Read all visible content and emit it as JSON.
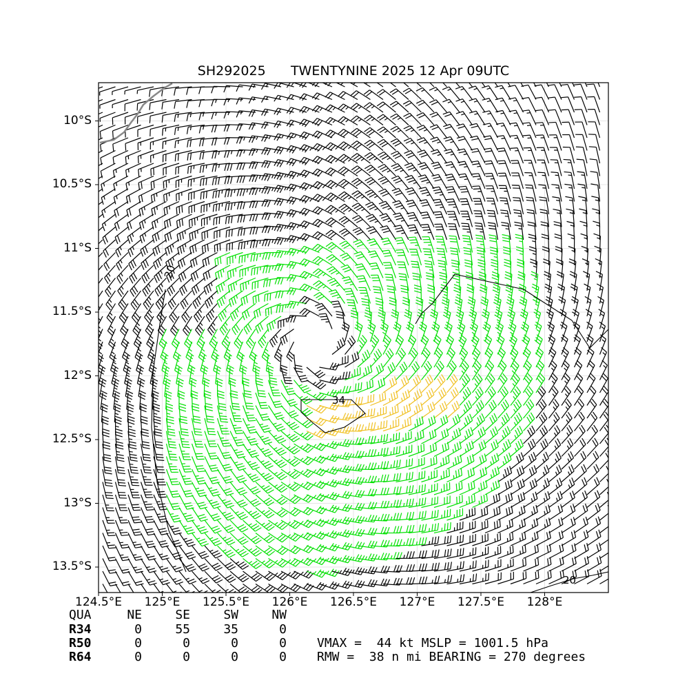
{
  "title": {
    "storm_id": "SH292025",
    "storm_info": "TWENTYNINE 2025 12 Apr 09UTC"
  },
  "map": {
    "lon_range": [
      124.5,
      128.5
    ],
    "lat_range": [
      -9.7,
      -13.7
    ],
    "center": {
      "lon": 126.2,
      "lat": -11.75
    },
    "lat_ticks": [
      {
        "value": -10.0,
        "label": "10°S"
      },
      {
        "value": -10.5,
        "label": "10.5°S"
      },
      {
        "value": -11.0,
        "label": "11°S"
      },
      {
        "value": -11.5,
        "label": "11.5°S"
      },
      {
        "value": -12.0,
        "label": "12°S"
      },
      {
        "value": -12.5,
        "label": "12.5°S"
      },
      {
        "value": -13.0,
        "label": "13°S"
      },
      {
        "value": -13.5,
        "label": "13.5°S"
      }
    ],
    "lon_ticks": [
      {
        "value": 124.5,
        "label": "124.5°E"
      },
      {
        "value": 125.0,
        "label": "125°E"
      },
      {
        "value": 125.5,
        "label": "125.5°E"
      },
      {
        "value": 126.0,
        "label": "126°E"
      },
      {
        "value": 126.5,
        "label": "126.5°E"
      },
      {
        "value": 127.0,
        "label": "127°E"
      },
      {
        "value": 127.5,
        "label": "127.5°E"
      },
      {
        "value": 128.0,
        "label": "128°E"
      }
    ],
    "contour_labels": [
      "20",
      "34",
      "20"
    ],
    "colors": {
      "barb_weak": "#000000",
      "barb_34kt": "#00e000",
      "barb_50kt": "#f0c020",
      "coastline": "#888888",
      "contour": "#000000"
    }
  },
  "wind_radii": {
    "header": [
      "QUA",
      "NE",
      "SE",
      "SW",
      "NW"
    ],
    "rows": [
      {
        "label": "R34",
        "values": [
          "0",
          "55",
          "35",
          "0"
        ]
      },
      {
        "label": "R50",
        "values": [
          "0",
          "0",
          "0",
          "0"
        ]
      },
      {
        "label": "R64",
        "values": [
          "0",
          "0",
          "0",
          "0"
        ]
      }
    ]
  },
  "summary": {
    "line1": "VMAX =  44 kt MSLP = 1001.5 hPa",
    "line2": "RMW =  38 n mi BEARING = 270 degrees"
  }
}
